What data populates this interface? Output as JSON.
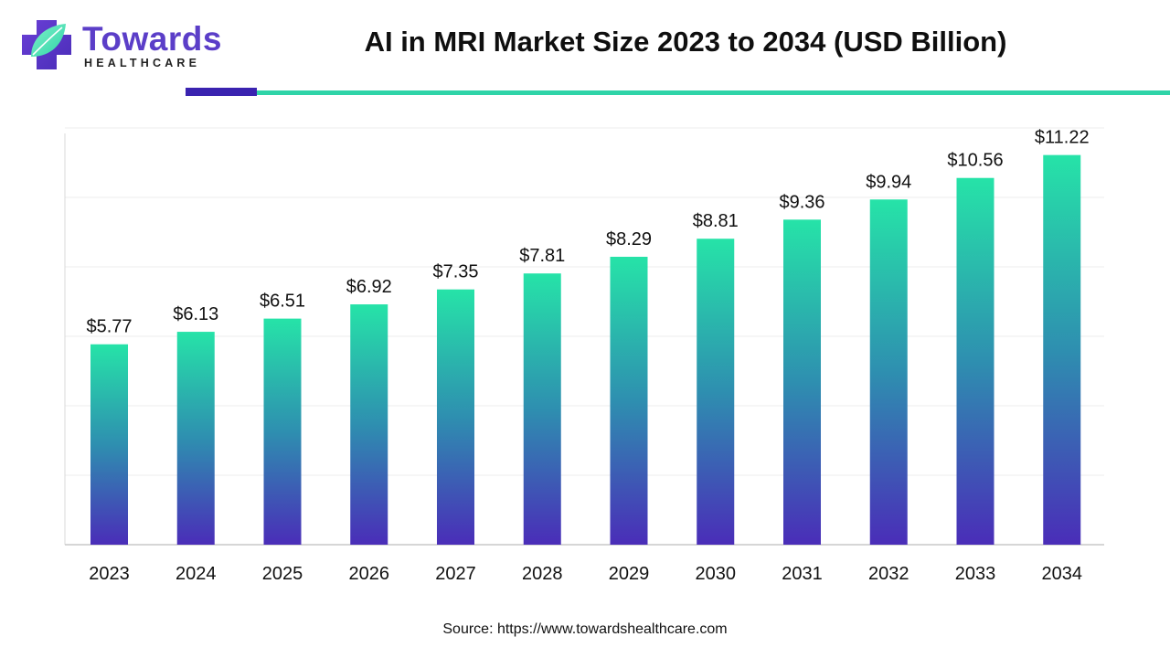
{
  "header": {
    "logo_word": "Towards",
    "logo_sub": "HEALTHCARE",
    "title": "AI in MRI Market Size 2023 to 2034 (USD Billion)"
  },
  "colors": {
    "bar_top": "#26e3a8",
    "bar_mid": "#2e8fb0",
    "bar_bottom": "#4a2db8",
    "brand_purple": "#5b3ec8",
    "rule_teal": "#2fd4a8",
    "rule_dark": "#3a23b0"
  },
  "chart_data": {
    "type": "bar",
    "title": "AI in MRI Market Size 2023 to 2034 (USD Billion)",
    "xlabel": "",
    "ylabel": "",
    "categories": [
      "2023",
      "2024",
      "2025",
      "2026",
      "2027",
      "2028",
      "2029",
      "2030",
      "2031",
      "2032",
      "2033",
      "2034"
    ],
    "values": [
      5.77,
      6.13,
      6.51,
      6.92,
      7.35,
      7.81,
      8.29,
      8.81,
      9.36,
      9.94,
      10.56,
      11.22
    ],
    "labels": [
      "$5.77",
      "$6.13",
      "$6.51",
      "$6.92",
      "$7.35",
      "$7.81",
      "$8.29",
      "$8.81",
      "$9.36",
      "$9.94",
      "$10.56",
      "$11.22"
    ],
    "ylim": [
      0,
      12
    ],
    "grid": true,
    "legend": "none"
  },
  "footer": {
    "source": "Source: https://www.towardshealthcare.com"
  }
}
